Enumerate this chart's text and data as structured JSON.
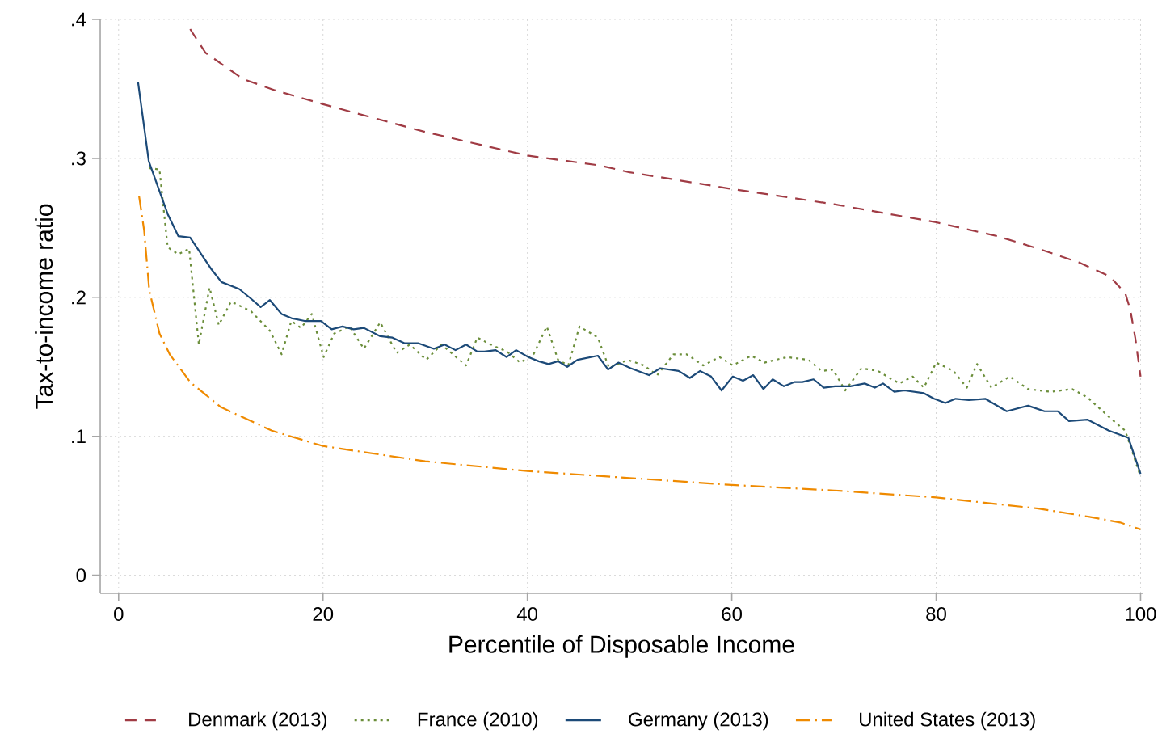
{
  "chart_data": {
    "type": "line",
    "xlabel": "Percentile of Disposable Income",
    "ylabel": "Tax-to-income ratio",
    "xlim": [
      -1.8,
      100.2
    ],
    "ylim": [
      -0.013,
      0.4
    ],
    "xticks": [
      0,
      20,
      40,
      60,
      80,
      100
    ],
    "yticks": [
      0,
      {
        "value": 0.1,
        "label": ".1"
      },
      {
        "value": 0.2,
        "label": ".2"
      },
      {
        "value": 0.3,
        "label": ".3"
      },
      {
        "value": 0.4,
        "label": ".4"
      }
    ],
    "grid": true,
    "legend": "bottom",
    "series": [
      {
        "name": "Denmark (2013)",
        "color": "#a03b44",
        "line_style": "dashed",
        "x": [
          7,
          8.5,
          12.2,
          15.3,
          20,
          30,
          40,
          47,
          50,
          60,
          70,
          80,
          86,
          90,
          94,
          97,
          98.5,
          99,
          99.5,
          100
        ],
        "values": [
          0.393,
          0.376,
          0.357,
          0.349,
          0.339,
          0.319,
          0.302,
          0.295,
          0.29,
          0.278,
          0.267,
          0.254,
          0.244,
          0.235,
          0.225,
          0.215,
          0.203,
          0.191,
          0.17,
          0.143
        ]
      },
      {
        "name": "France (2010)",
        "color": "#6b8e3a",
        "line_style": "dotted",
        "x": [
          2.95,
          4,
          4.8,
          5.85,
          6.9,
          7.85,
          8.9,
          9.8,
          11,
          12.95,
          14.8,
          15.95,
          16.9,
          17.85,
          18.9,
          20.06,
          21.1,
          22.6,
          24,
          25.6,
          27.2,
          28.5,
          30.1,
          31.6,
          34,
          35.1,
          36.7,
          38,
          39.3,
          40.6,
          41.9,
          43,
          44,
          45.1,
          46.9,
          48,
          49.8,
          51.4,
          52.7,
          54.3,
          55.6,
          57.2,
          58.8,
          60.1,
          61.9,
          63.2,
          65.4,
          67.5,
          68.8,
          69.9,
          71.1,
          72.7,
          74.3,
          76.4,
          77.7,
          78.8,
          80,
          81.7,
          83,
          84,
          85.4,
          87.2,
          89,
          91.2,
          93.3,
          94.8,
          96.9,
          98.5,
          100
        ],
        "values": [
          0.293,
          0.292,
          0.236,
          0.231,
          0.235,
          0.166,
          0.207,
          0.18,
          0.197,
          0.19,
          0.176,
          0.159,
          0.183,
          0.178,
          0.188,
          0.157,
          0.174,
          0.179,
          0.163,
          0.182,
          0.16,
          0.166,
          0.155,
          0.166,
          0.151,
          0.171,
          0.165,
          0.161,
          0.153,
          0.159,
          0.179,
          0.155,
          0.151,
          0.179,
          0.171,
          0.149,
          0.155,
          0.151,
          0.144,
          0.159,
          0.159,
          0.151,
          0.157,
          0.151,
          0.158,
          0.153,
          0.157,
          0.155,
          0.147,
          0.148,
          0.133,
          0.149,
          0.147,
          0.138,
          0.143,
          0.135,
          0.153,
          0.147,
          0.135,
          0.152,
          0.135,
          0.143,
          0.134,
          0.132,
          0.134,
          0.128,
          0.114,
          0.104,
          0.071
        ]
      },
      {
        "name": "Germany (2013)",
        "color": "#1c4a78",
        "line_style": "solid",
        "x": [
          1.9,
          2.95,
          4.8,
          5.85,
          7,
          9,
          10.06,
          11.8,
          12.95,
          13.9,
          14.8,
          15.95,
          16.9,
          18.2,
          19.8,
          20.85,
          21.9,
          23,
          24,
          25.6,
          26.8,
          27.96,
          29.3,
          30.85,
          31.9,
          32.97,
          34,
          35.1,
          35.8,
          36.9,
          37.97,
          38.9,
          40.1,
          41.1,
          42.07,
          43,
          43.9,
          44.9,
          46.9,
          47.9,
          48.9,
          50.1,
          51.9,
          53,
          54.8,
          55.9,
          56.9,
          57.98,
          59,
          60.1,
          61.1,
          62.1,
          63.1,
          64,
          65.1,
          66.1,
          66.9,
          68,
          69,
          70.1,
          71.6,
          73,
          74,
          74.8,
          75.9,
          76.9,
          78.8,
          79.8,
          80.9,
          81.9,
          83.2,
          84.8,
          86.9,
          89,
          90.6,
          91.9,
          93,
          94.8,
          96.9,
          98.8,
          100
        ],
        "values": [
          0.355,
          0.298,
          0.26,
          0.244,
          0.243,
          0.221,
          0.211,
          0.206,
          0.199,
          0.193,
          0.198,
          0.188,
          0.185,
          0.183,
          0.183,
          0.177,
          0.179,
          0.177,
          0.178,
          0.172,
          0.171,
          0.167,
          0.167,
          0.163,
          0.166,
          0.162,
          0.166,
          0.161,
          0.161,
          0.162,
          0.157,
          0.162,
          0.157,
          0.154,
          0.152,
          0.154,
          0.15,
          0.155,
          0.158,
          0.148,
          0.153,
          0.149,
          0.144,
          0.149,
          0.147,
          0.142,
          0.147,
          0.143,
          0.133,
          0.143,
          0.14,
          0.144,
          0.134,
          0.141,
          0.136,
          0.139,
          0.139,
          0.141,
          0.135,
          0.136,
          0.136,
          0.138,
          0.135,
          0.138,
          0.132,
          0.133,
          0.131,
          0.127,
          0.124,
          0.127,
          0.126,
          0.127,
          0.118,
          0.122,
          0.118,
          0.118,
          0.111,
          0.112,
          0.104,
          0.099,
          0.073
        ]
      },
      {
        "name": "United States (2013)",
        "color": "#ef8a00",
        "line_style": "dashdot",
        "x": [
          2,
          2.5,
          3,
          4,
          5,
          7,
          10,
          15,
          20,
          30,
          40,
          50,
          60,
          70,
          80,
          90,
          95,
          98,
          100
        ],
        "values": [
          0.273,
          0.248,
          0.205,
          0.174,
          0.159,
          0.139,
          0.121,
          0.104,
          0.093,
          0.082,
          0.075,
          0.07,
          0.065,
          0.061,
          0.056,
          0.048,
          0.042,
          0.038,
          0.033
        ]
      }
    ]
  }
}
